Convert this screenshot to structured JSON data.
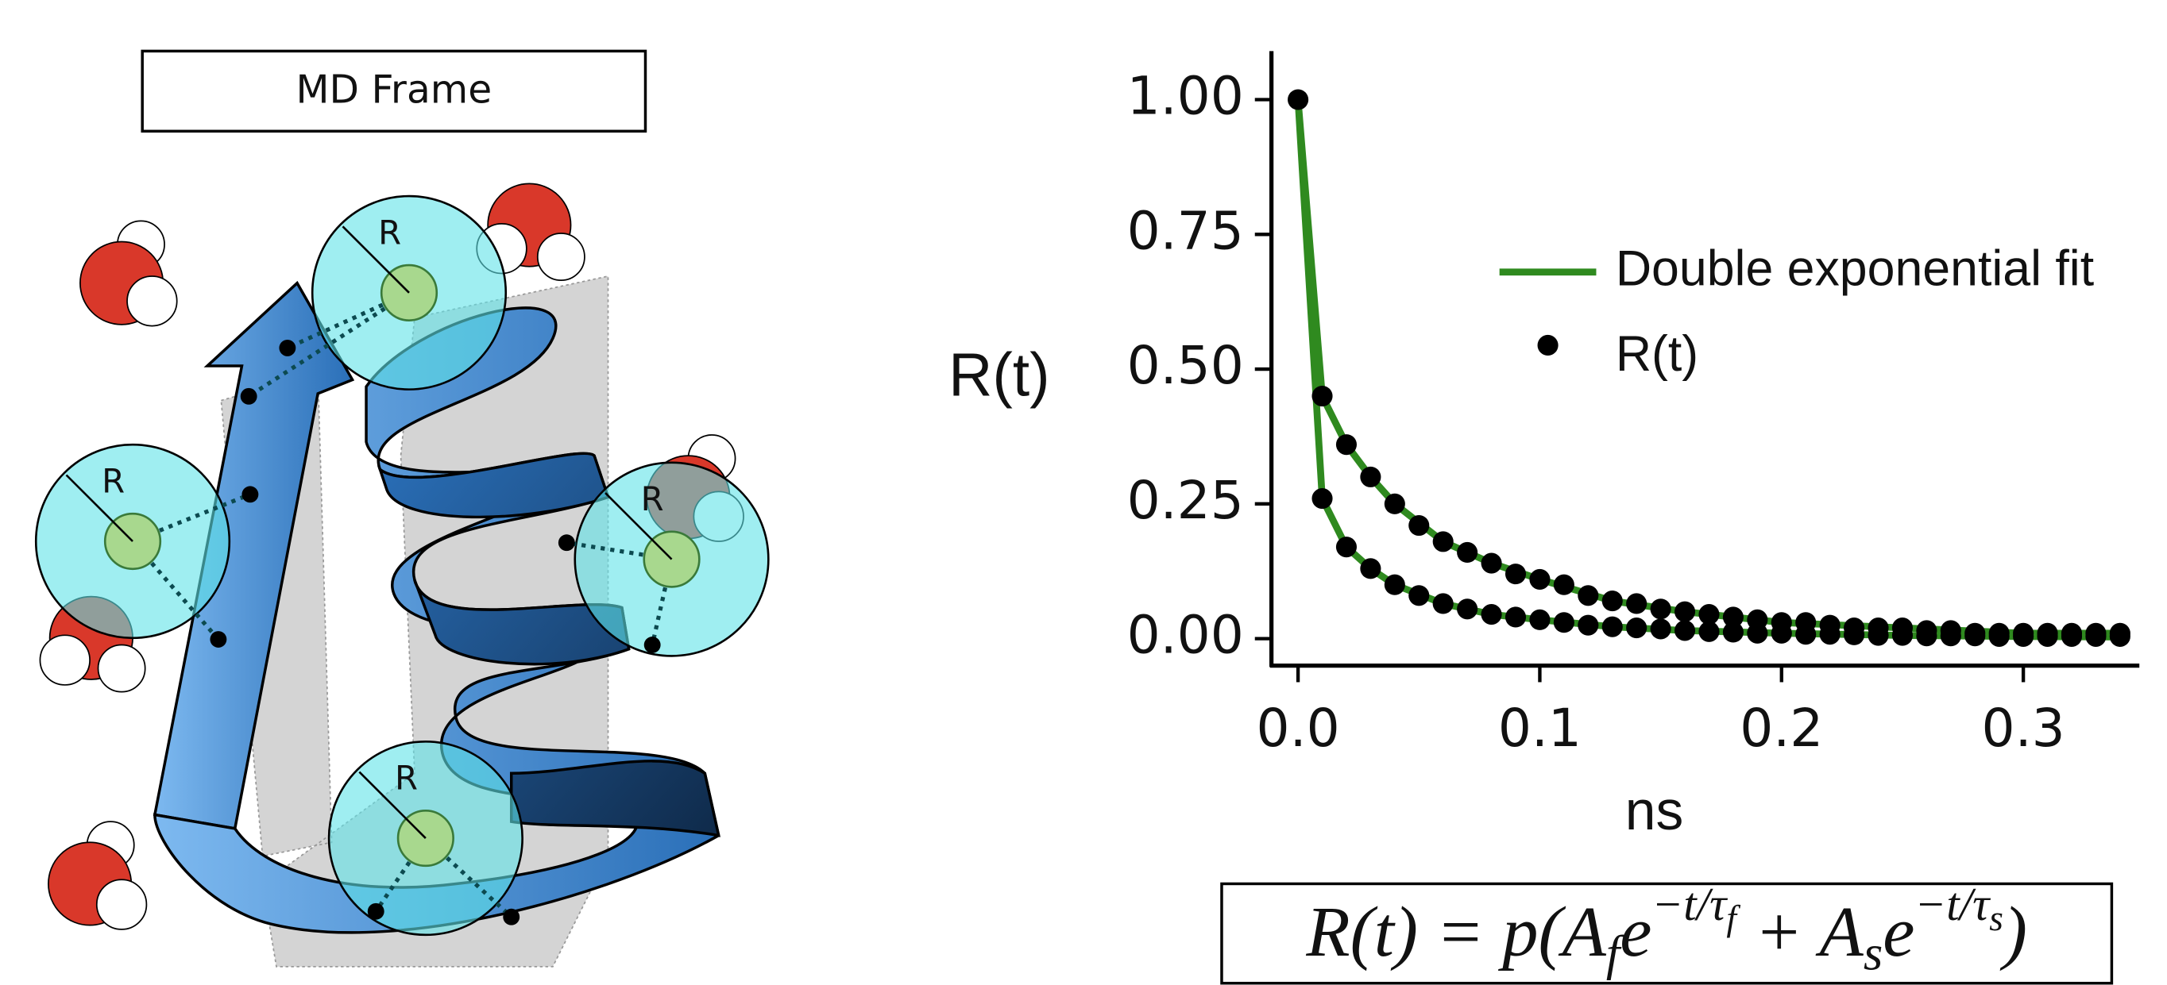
{
  "diagram": {
    "frame_label": "MD Frame",
    "radius_labels": [
      "R",
      "R",
      "R",
      "R"
    ],
    "equation": [
      {
        "text": "R(t) = p(A",
        "style": "base"
      },
      {
        "text": "f",
        "style": "sub"
      },
      {
        "text": "e",
        "style": "base"
      },
      {
        "text": "−t/τ",
        "style": "sup"
      },
      {
        "text": "f",
        "style": "supsub"
      },
      {
        "text": " + A",
        "style": "base"
      },
      {
        "text": "s",
        "style": "sub"
      },
      {
        "text": "e",
        "style": "base"
      },
      {
        "text": "−t/τ",
        "style": "sup"
      },
      {
        "text": "s",
        "style": "supsub"
      },
      {
        "text": ")",
        "style": "base"
      }
    ]
  },
  "chart_data": {
    "type": "scatter",
    "xlabel": "ns",
    "ylabel": "R(t)",
    "xlim": [
      -0.011,
      0.348
    ],
    "ylim": [
      -0.05,
      1.09
    ],
    "xticks": [
      {
        "value": 0,
        "label": "0.0"
      },
      0.1,
      0.2,
      0.3
    ],
    "yticks": [
      {
        "value": 0,
        "label": "0.00"
      },
      {
        "value": 0.25,
        "label": "0.25"
      },
      {
        "value": 0.5,
        "label": "0.50"
      },
      {
        "value": 0.75,
        "label": "0.75"
      },
      {
        "value": 1,
        "label": "1.00"
      }
    ],
    "legend": "upper right",
    "series": [
      {
        "name": "Double exponential fit",
        "type": "line",
        "color": "#2f8a1f",
        "x": [
          0,
          0.01,
          0.02,
          0.03,
          0.04,
          0.06,
          0.08,
          0.1,
          0.13,
          0.16,
          0.2,
          0.25,
          0.3,
          0.34,
          null,
          0,
          0.01,
          0.02,
          0.03,
          0.04,
          0.06,
          0.08,
          0.1,
          0.13,
          0.16,
          0.2,
          0.25,
          0.3,
          0.34
        ],
        "values": [
          1.0,
          0.45,
          0.36,
          0.3,
          0.25,
          0.18,
          0.14,
          0.11,
          0.07,
          0.05,
          0.03,
          0.02,
          0.01,
          0.01,
          null,
          1.0,
          0.26,
          0.17,
          0.13,
          0.1,
          0.065,
          0.045,
          0.035,
          0.022,
          0.015,
          0.01,
          0.006,
          0.004,
          0.003
        ]
      },
      {
        "name": "R(t)",
        "type": "points",
        "color": "#000000",
        "x": [
          0,
          0.01,
          0.02,
          0.03,
          0.04,
          0.05,
          0.06,
          0.07,
          0.08,
          0.09,
          0.1,
          0.11,
          0.12,
          0.13,
          0.14,
          0.15,
          0.16,
          0.17,
          0.18,
          0.19,
          0.2,
          0.21,
          0.22,
          0.23,
          0.24,
          0.25,
          0.26,
          0.27,
          0.28,
          0.29,
          0.3,
          0.31,
          0.32,
          0.33,
          0.34,
          0.01,
          0.02,
          0.03,
          0.04,
          0.05,
          0.06,
          0.07,
          0.08,
          0.09,
          0.1,
          0.11,
          0.12,
          0.13,
          0.14,
          0.15,
          0.16,
          0.17,
          0.18,
          0.19,
          0.2,
          0.21,
          0.22,
          0.23,
          0.24,
          0.25,
          0.26,
          0.27,
          0.28,
          0.29,
          0.3,
          0.31,
          0.32,
          0.33,
          0.34
        ],
        "values": [
          1.0,
          0.45,
          0.36,
          0.3,
          0.25,
          0.21,
          0.18,
          0.16,
          0.14,
          0.12,
          0.11,
          0.1,
          0.08,
          0.07,
          0.065,
          0.055,
          0.05,
          0.045,
          0.04,
          0.035,
          0.03,
          0.03,
          0.025,
          0.02,
          0.02,
          0.02,
          0.015,
          0.015,
          0.01,
          0.01,
          0.01,
          0.01,
          0.01,
          0.01,
          0.01,
          0.26,
          0.17,
          0.13,
          0.1,
          0.08,
          0.065,
          0.055,
          0.045,
          0.04,
          0.035,
          0.03,
          0.025,
          0.022,
          0.02,
          0.018,
          0.015,
          0.013,
          0.012,
          0.01,
          0.01,
          0.008,
          0.008,
          0.007,
          0.006,
          0.006,
          0.005,
          0.005,
          0.005,
          0.004,
          0.004,
          0.004,
          0.004,
          0.004,
          0.004
        ]
      }
    ]
  }
}
